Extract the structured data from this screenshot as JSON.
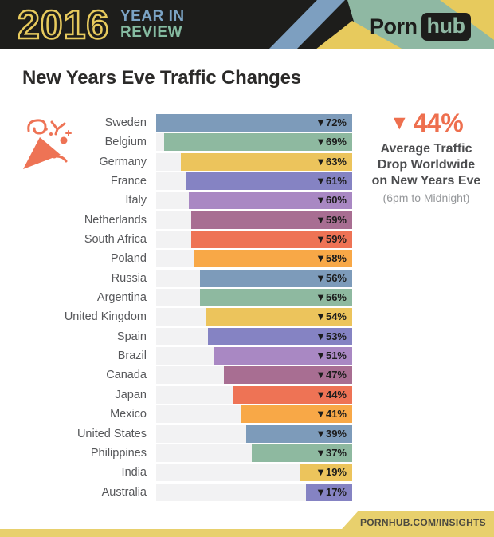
{
  "page": {
    "title": "New Years Eve Traffic Changes"
  },
  "header": {
    "year": "2016",
    "title_line1": "YEAR IN",
    "title_line2": "REVIEW",
    "logo_part1": "Porn",
    "logo_part2": "hub",
    "colors": {
      "background": "#1d1d1b",
      "year": "#e7ca5d",
      "line1": "#7ba3c4",
      "line2": "#85bba1",
      "stripe_blue": "#7d9fc0",
      "stripe_green": "#8fb8a3",
      "stripe_yellow": "#e7ca5d"
    }
  },
  "chart_data": {
    "type": "bar",
    "orientation": "horizontal",
    "title": "New Years Eve Traffic Changes",
    "xlabel": "",
    "ylabel": "",
    "unit": "%",
    "xlim": [
      0,
      72
    ],
    "grid": false,
    "legend": false,
    "track_color": "#f2f2f3",
    "value_prefix_symbol": "▼",
    "categories": [
      "Sweden",
      "Belgium",
      "Germany",
      "France",
      "Italy",
      "Netherlands",
      "South Africa",
      "Poland",
      "Russia",
      "Argentina",
      "United Kingdom",
      "Spain",
      "Brazil",
      "Canada",
      "Japan",
      "Mexico",
      "United States",
      "Philippines",
      "India",
      "Australia"
    ],
    "values": [
      72,
      69,
      63,
      61,
      60,
      59,
      59,
      58,
      56,
      56,
      54,
      53,
      51,
      47,
      44,
      41,
      39,
      37,
      19,
      17
    ],
    "rows": [
      {
        "country": "Sweden",
        "value": 72,
        "label": "▼72%",
        "color": "#7d9bba"
      },
      {
        "country": "Belgium",
        "value": 69,
        "label": "▼69%",
        "color": "#8eb9a0"
      },
      {
        "country": "Germany",
        "value": 63,
        "label": "▼63%",
        "color": "#ecc45c"
      },
      {
        "country": "France",
        "value": 61,
        "label": "▼61%",
        "color": "#8583c3"
      },
      {
        "country": "Italy",
        "value": 60,
        "label": "▼60%",
        "color": "#a988c3"
      },
      {
        "country": "Netherlands",
        "value": 59,
        "label": "▼59%",
        "color": "#a86e92"
      },
      {
        "country": "South Africa",
        "value": 59,
        "label": "▼59%",
        "color": "#ee7355"
      },
      {
        "country": "Poland",
        "value": 58,
        "label": "▼58%",
        "color": "#f8a847"
      },
      {
        "country": "Russia",
        "value": 56,
        "label": "▼56%",
        "color": "#7d9bba"
      },
      {
        "country": "Argentina",
        "value": 56,
        "label": "▼56%",
        "color": "#8eb9a0"
      },
      {
        "country": "United Kingdom",
        "value": 54,
        "label": "▼54%",
        "color": "#ecc45c"
      },
      {
        "country": "Spain",
        "value": 53,
        "label": "▼53%",
        "color": "#8583c3"
      },
      {
        "country": "Brazil",
        "value": 51,
        "label": "▼51%",
        "color": "#a988c3"
      },
      {
        "country": "Canada",
        "value": 47,
        "label": "▼47%",
        "color": "#a86e92"
      },
      {
        "country": "Japan",
        "value": 44,
        "label": "▼44%",
        "color": "#ee7355"
      },
      {
        "country": "Mexico",
        "value": 41,
        "label": "▼41%",
        "color": "#f8a847"
      },
      {
        "country": "United States",
        "value": 39,
        "label": "▼39%",
        "color": "#7d9bba"
      },
      {
        "country": "Philippines",
        "value": 37,
        "label": "▼37%",
        "color": "#8eb9a0"
      },
      {
        "country": "India",
        "value": 19,
        "label": "▼19%",
        "color": "#ecc45c"
      },
      {
        "country": "Australia",
        "value": 17,
        "label": "▼17%",
        "color": "#8583c3"
      }
    ]
  },
  "callout": {
    "symbol": "▼",
    "value": "44%",
    "line1": "Average Traffic",
    "line2": "Drop Worldwide",
    "line3": "on New Years Eve",
    "subtext": "(6pm to Midnight)",
    "accent_color": "#ee6f4e"
  },
  "footer": {
    "text": "PORNHUB.COM/INSIGHTS",
    "background": "#e8d06d"
  },
  "icons": {
    "party_popper": "party-popper-icon",
    "party_popper_color": "#ee7355"
  }
}
